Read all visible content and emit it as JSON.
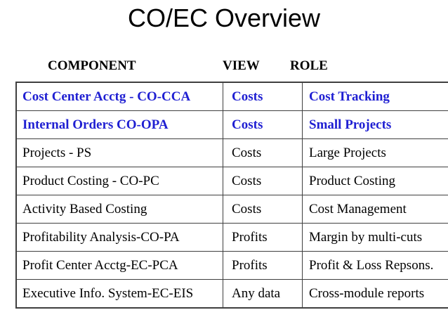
{
  "slide": {
    "title": "CO/EC Overview"
  },
  "table": {
    "headers": {
      "component": "COMPONENT",
      "view": "VIEW",
      "role": "ROLE"
    },
    "rows": [
      {
        "component": "Cost Center Acctg - CO-CCA",
        "view": "Costs",
        "role": "Cost Tracking",
        "highlighted": true
      },
      {
        "component": "Internal Orders CO-OPA",
        "view": "Costs",
        "role": "Small Projects",
        "highlighted": true
      },
      {
        "component": "Projects - PS",
        "view": "Costs",
        "role": "Large Projects",
        "highlighted": false
      },
      {
        "component": "Product Costing - CO-PC",
        "view": "Costs",
        "role": "Product Costing",
        "highlighted": false
      },
      {
        "component": "Activity Based Costing",
        "view": "Costs",
        "role": "Cost Management",
        "highlighted": false
      },
      {
        "component": "Profitability Analysis-CO-PA",
        "view": "Profits",
        "role": "Margin by multi-cuts",
        "highlighted": false
      },
      {
        "component": "Profit Center Acctg-EC-PCA",
        "view": "Profits",
        "role": "Profit & Loss Repsons.",
        "highlighted": false
      },
      {
        "component": "Executive Info. System-EC-EIS",
        "view": "Any data",
        "role": "Cross-module reports",
        "highlighted": false
      }
    ]
  },
  "colors": {
    "background": "#ffffff",
    "title_text": "#000000",
    "body_text": "#000000",
    "highlight_text": "#1f1fd2",
    "border": "#3f3f3f"
  }
}
